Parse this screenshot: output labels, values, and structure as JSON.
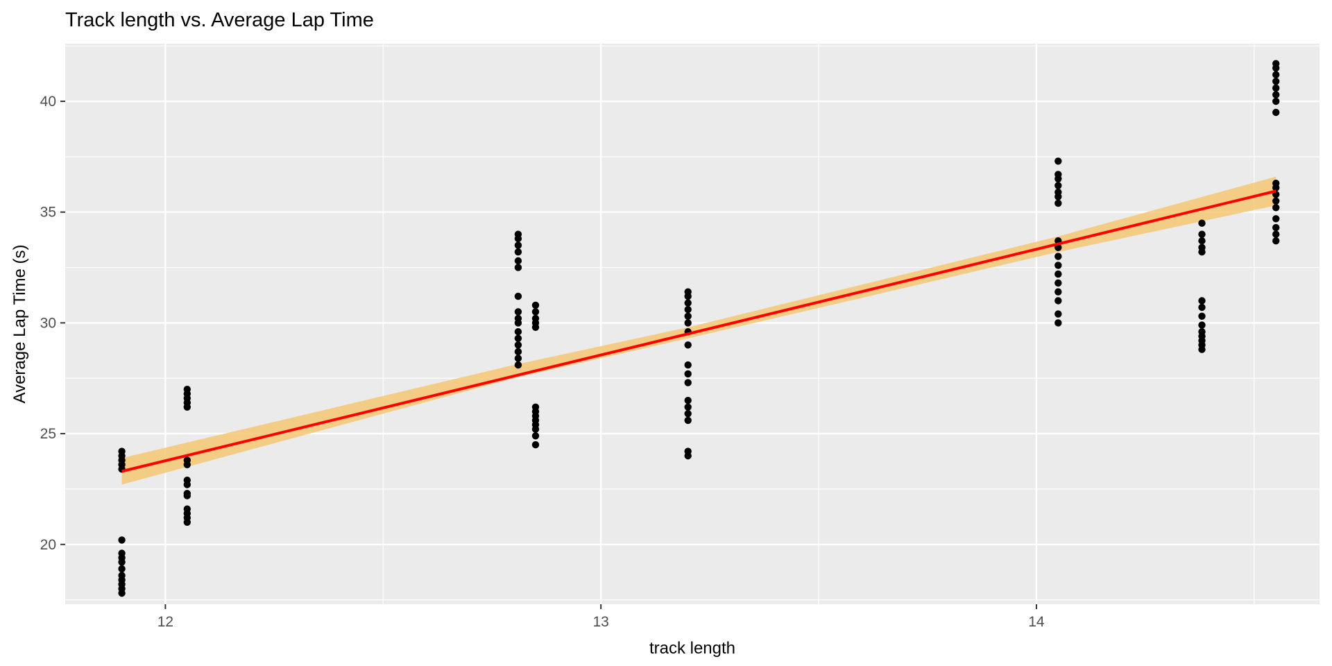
{
  "chart_data": {
    "type": "scatter",
    "title": "Track length vs. Average Lap Time",
    "xlabel": "track length",
    "ylabel": "Average Lap Time (s)",
    "xlim": [
      11.77,
      14.65
    ],
    "ylim": [
      17.3,
      42.6
    ],
    "x_ticks": [
      12,
      13,
      14
    ],
    "x_tick_labels": [
      "12",
      "13",
      "14"
    ],
    "x_minor_ticks": [
      12.5,
      13.5,
      14.5
    ],
    "y_ticks": [
      20,
      25,
      30,
      35,
      40
    ],
    "y_tick_labels": [
      "20",
      "25",
      "30",
      "35",
      "40"
    ],
    "y_minor_ticks": [
      17.5,
      22.5,
      27.5,
      32.5,
      37.5,
      42.5
    ],
    "grid": true,
    "background": "#ebebeb",
    "grid_color": "#ffffff",
    "point_color": "#000000",
    "trend_color": "#ff0000",
    "band_color": "#f5c873",
    "trend": {
      "x": [
        11.9,
        14.55
      ],
      "y": [
        23.3,
        35.95
      ]
    },
    "band": {
      "x": [
        11.9,
        12.8,
        13.2,
        14.05,
        14.55
      ],
      "lower": [
        22.7,
        27.5,
        29.3,
        33.2,
        35.3
      ],
      "upper": [
        23.9,
        28.1,
        29.8,
        33.9,
        36.6
      ]
    },
    "points": [
      {
        "x": 11.9,
        "y": [
          17.8,
          18.0,
          18.2,
          18.4,
          18.6,
          18.9,
          19.2,
          19.4,
          19.6,
          20.2,
          23.4,
          23.6,
          23.8,
          24.0,
          24.2
        ]
      },
      {
        "x": 12.05,
        "y": [
          21.0,
          21.2,
          21.4,
          21.6,
          22.2,
          22.3,
          22.7,
          22.9,
          23.6,
          23.8,
          26.2,
          26.4,
          26.6,
          26.8,
          27.0
        ]
      },
      {
        "x": 12.81,
        "y": [
          28.1,
          28.4,
          28.7,
          29.0,
          29.3,
          29.6,
          30.0,
          30.2,
          30.5,
          31.2,
          32.5,
          32.8,
          33.2,
          33.5,
          33.8,
          34.0
        ]
      },
      {
        "x": 12.85,
        "y": [
          24.5,
          24.9,
          25.2,
          25.4,
          25.6,
          25.8,
          26.0,
          26.2,
          29.8,
          30.0,
          30.2,
          30.5,
          30.8
        ]
      },
      {
        "x": 13.2,
        "y": [
          24.0,
          24.2,
          25.6,
          25.9,
          26.2,
          26.5,
          27.3,
          27.7,
          28.1,
          29.0,
          29.6,
          30.0,
          30.3,
          30.6,
          30.9,
          31.2,
          31.4
        ]
      },
      {
        "x": 14.05,
        "y": [
          30.0,
          30.4,
          31.0,
          31.4,
          31.8,
          32.2,
          32.6,
          33.0,
          33.4,
          33.7,
          35.4,
          35.7,
          35.9,
          36.2,
          36.5,
          36.7,
          37.3
        ]
      },
      {
        "x": 14.38,
        "y": [
          28.8,
          29.0,
          29.2,
          29.4,
          29.6,
          29.9,
          30.3,
          30.7,
          31.0,
          33.2,
          33.4,
          33.7,
          34.0,
          34.5
        ]
      },
      {
        "x": 14.55,
        "y": [
          33.7,
          34.0,
          34.3,
          34.7,
          35.2,
          35.5,
          35.8,
          36.1,
          36.3,
          39.5,
          40.0,
          40.3,
          40.6,
          40.9,
          41.2,
          41.5,
          41.7
        ]
      }
    ]
  }
}
